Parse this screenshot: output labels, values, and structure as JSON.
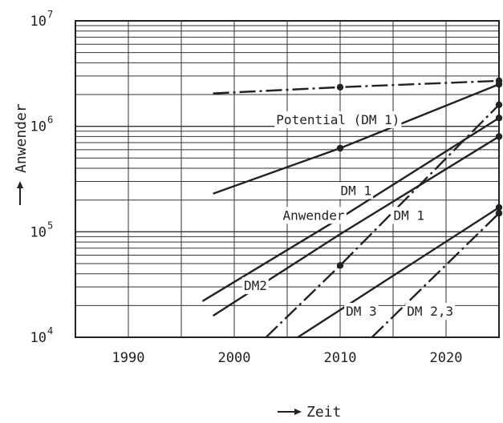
{
  "chart_data": {
    "type": "line",
    "title": "",
    "xlabel": "Zeit",
    "ylabel": "Anwender",
    "y_scale": "log",
    "xlim": [
      1985,
      2025
    ],
    "ylim": [
      10000,
      10000000
    ],
    "grid": true,
    "x_tick_labels": [
      "1990",
      "2000",
      "2010",
      "2020"
    ],
    "x_ticks": [
      1990,
      2000,
      2010,
      2020
    ],
    "y_ticks": [
      10000,
      100000,
      1000000,
      10000000
    ],
    "y_tick_labels": [
      {
        "base": "10",
        "exp": "4"
      },
      {
        "base": "10",
        "exp": "5"
      },
      {
        "base": "10",
        "exp": "6"
      },
      {
        "base": "10",
        "exp": "7"
      }
    ],
    "series": [
      {
        "style": "dashdot",
        "points": [
          [
            1998,
            2050000
          ],
          [
            2010,
            2350000
          ],
          [
            2025,
            2700000
          ]
        ],
        "markers": [
          [
            2010,
            2350000
          ],
          [
            2025,
            2700000
          ]
        ]
      },
      {
        "style": "solid",
        "points": [
          [
            1998,
            230000
          ],
          [
            2010,
            620000
          ],
          [
            2025,
            2500000
          ]
        ],
        "markers": [
          [
            2010,
            620000
          ],
          [
            2025,
            2500000
          ]
        ]
      },
      {
        "style": "solid",
        "points": [
          [
            1997,
            22000
          ],
          [
            2010,
            135000
          ],
          [
            2025,
            1200000
          ]
        ],
        "markers": [
          [
            2010,
            135000
          ],
          [
            2025,
            1200000
          ]
        ]
      },
      {
        "style": "solid",
        "points": [
          [
            1998,
            16000
          ],
          [
            2010,
            95000
          ],
          [
            2025,
            800000
          ]
        ],
        "markers": [
          [
            2025,
            800000
          ]
        ]
      },
      {
        "style": "dashdot",
        "points": [
          [
            2003,
            10000
          ],
          [
            2010,
            48000
          ],
          [
            2025,
            1600000
          ]
        ],
        "markers": [
          [
            2010,
            48000
          ],
          [
            2025,
            1600000
          ]
        ]
      },
      {
        "style": "solid",
        "points": [
          [
            2006,
            10000
          ],
          [
            2025,
            170000
          ]
        ],
        "markers": [
          [
            2025,
            170000
          ]
        ]
      },
      {
        "style": "dashdot",
        "points": [
          [
            2013,
            10000
          ],
          [
            2025,
            150000
          ]
        ],
        "markers": [
          [
            2025,
            150000
          ]
        ]
      }
    ],
    "annotations": [
      {
        "text": "Potential (DM 1)",
        "x": 2009.8,
        "y": 1050000
      },
      {
        "text": "DM 1",
        "x": 2011.5,
        "y": 223000
      },
      {
        "text": "Anwender",
        "x": 2007.5,
        "y": 130000
      },
      {
        "text": "DM 1",
        "x": 2016.5,
        "y": 130000
      },
      {
        "text": "DM2",
        "x": 2002,
        "y": 28000
      },
      {
        "text": "DM 3",
        "x": 2012,
        "y": 16000
      },
      {
        "text": "DM 2,3",
        "x": 2018.5,
        "y": 16000
      }
    ]
  }
}
